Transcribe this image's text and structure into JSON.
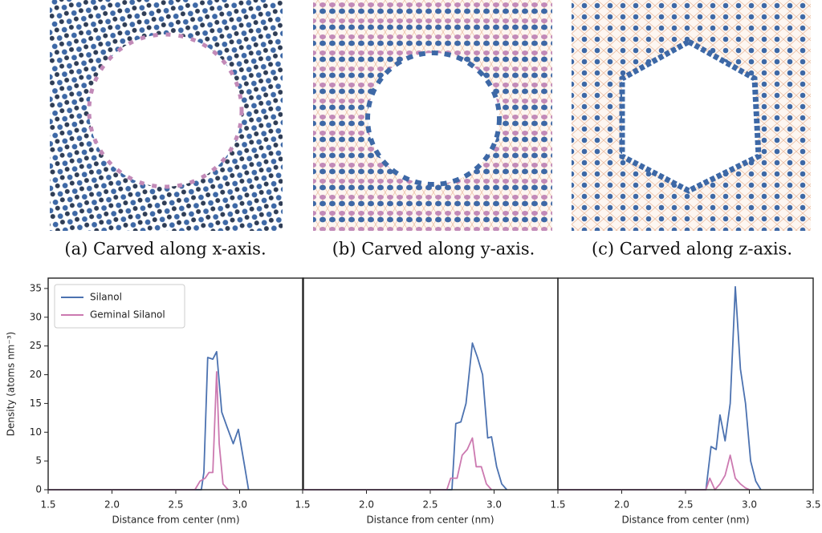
{
  "images": [
    {
      "caption": "(a) Carved along x-axis."
    },
    {
      "caption": "(b) Carved along y-axis."
    },
    {
      "caption": "(c) Carved along z-axis."
    }
  ],
  "chart_data": [
    {
      "type": "line",
      "xlabel": "Distance from center (nm)",
      "ylabel": "Density (atoms nm⁻³)",
      "legend": "upper left",
      "xlim": [
        1.5,
        3.5
      ],
      "ylim": [
        0,
        36.8
      ],
      "xticks": [
        1.5,
        {
          "value": 2,
          "label": "2.0"
        },
        2.5,
        {
          "value": 3,
          "label": "3.0"
        }
      ],
      "yticks": [
        0,
        5,
        10,
        15,
        20,
        25,
        30,
        35
      ],
      "series": [
        {
          "name": "Silanol",
          "color": "#4c72b0",
          "x": [
            1.5,
            2.7,
            2.72,
            2.75,
            2.79,
            2.82,
            2.86,
            2.9,
            2.95,
            2.99,
            3.04,
            3.07
          ],
          "values": [
            0,
            0,
            3,
            23,
            22.7,
            24,
            13.5,
            11,
            8,
            10.5,
            4,
            0
          ]
        },
        {
          "name": "Geminal Silanol",
          "color": "#cc79b0",
          "x": [
            1.5,
            2.65,
            2.69,
            2.73,
            2.76,
            2.79,
            2.82,
            2.84,
            2.87,
            2.91
          ],
          "values": [
            0,
            0,
            1.5,
            2,
            3,
            3,
            20.5,
            8,
            1,
            0
          ]
        }
      ]
    },
    {
      "type": "line",
      "xlabel": "Distance from center (nm)",
      "xlim": [
        1.5,
        3.5
      ],
      "ylim": [
        0,
        36.8
      ],
      "xticks": [
        1.5,
        {
          "value": 2,
          "label": "2.0"
        },
        2.5,
        {
          "value": 3,
          "label": "3.0"
        }
      ],
      "series": [
        {
          "color": "#4c72b0",
          "x": [
            1.5,
            2.67,
            2.7,
            2.74,
            2.78,
            2.83,
            2.87,
            2.91,
            2.95,
            2.98,
            3.02,
            3.06,
            3.1
          ],
          "values": [
            0,
            0,
            11.5,
            11.8,
            15,
            25.5,
            23,
            20,
            9,
            9.2,
            4,
            1,
            0
          ]
        },
        {
          "color": "#cc79b0",
          "x": [
            1.5,
            2.63,
            2.66,
            2.71,
            2.75,
            2.79,
            2.83,
            2.86,
            2.9,
            2.94,
            2.98
          ],
          "values": [
            0,
            0,
            2,
            2,
            6,
            7,
            9,
            4,
            4,
            1,
            0
          ]
        }
      ]
    },
    {
      "type": "line",
      "xlabel": "Distance from center (nm)",
      "xlim": [
        1.5,
        3.5
      ],
      "ylim": [
        0,
        36.8
      ],
      "xticks": [
        1.5,
        {
          "value": 2,
          "label": "2.0"
        },
        2.5,
        {
          "value": 3,
          "label": "3.0"
        },
        3.5
      ],
      "series": [
        {
          "color": "#4c72b0",
          "x": [
            1.5,
            2.66,
            2.7,
            2.74,
            2.77,
            2.81,
            2.85,
            2.89,
            2.93,
            2.97,
            3.01,
            3.05,
            3.09
          ],
          "values": [
            0,
            0,
            7.5,
            7,
            13,
            8.5,
            15,
            35.3,
            21,
            15,
            5,
            1.5,
            0
          ]
        },
        {
          "color": "#cc79b0",
          "x": [
            1.5,
            2.66,
            2.69,
            2.73,
            2.77,
            2.81,
            2.85,
            2.89,
            2.93,
            2.97,
            3.0
          ],
          "values": [
            0,
            0,
            2,
            0,
            1,
            2.5,
            6,
            2,
            1,
            0.3,
            0
          ]
        }
      ]
    }
  ]
}
